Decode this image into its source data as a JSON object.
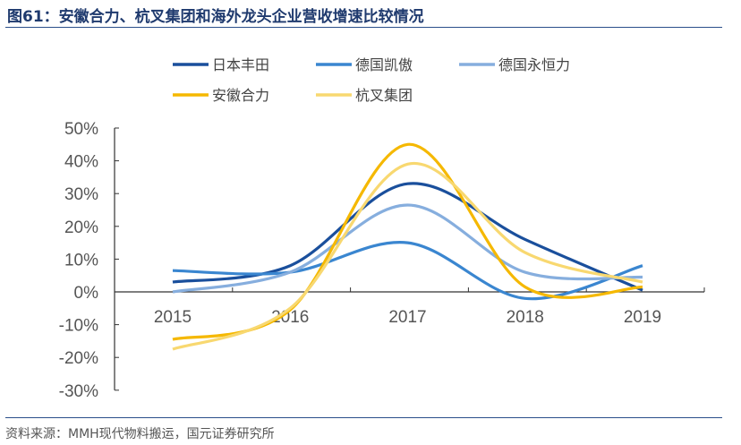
{
  "title": "图61：安徽合力、杭叉集团和海外龙头企业营收增速比较情况",
  "source": "资料来源：MMH现代物料搬运，国元证券研究所",
  "chart_data": {
    "type": "line",
    "categories": [
      "2015",
      "2016",
      "2017",
      "2018",
      "2019"
    ],
    "ylim": [
      -30,
      50
    ],
    "yticks": [
      "50%",
      "40%",
      "30%",
      "20%",
      "10%",
      "0%",
      "-10%",
      "-20%",
      "-30%"
    ],
    "legend_position": "top",
    "grid": false,
    "series": [
      {
        "name": "日本丰田",
        "color": "#1a4f9c",
        "values": [
          3,
          8,
          33,
          16,
          0.5
        ]
      },
      {
        "name": "德国凯傲",
        "color": "#3a86d0",
        "values": [
          6.5,
          6,
          15,
          -2,
          8
        ]
      },
      {
        "name": "德国永恒力",
        "color": "#86aede",
        "values": [
          0,
          6,
          26.5,
          6,
          4.5
        ]
      },
      {
        "name": "安徽合力",
        "color": "#f5b800",
        "values": [
          -14.5,
          -5.5,
          45,
          1.5,
          1.5
        ]
      },
      {
        "name": "杭叉集团",
        "color": "#f8d870",
        "values": [
          -17.5,
          -5,
          39,
          12,
          3
        ]
      }
    ]
  }
}
